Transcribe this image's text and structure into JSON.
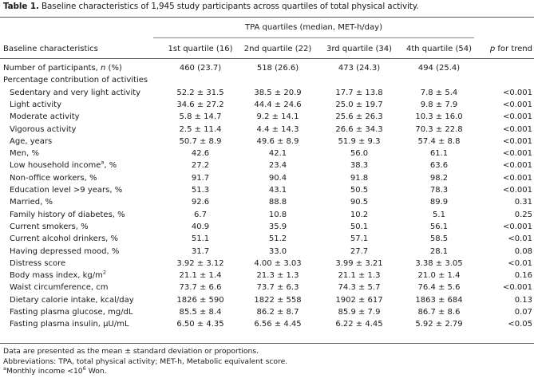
{
  "title": {
    "label": "Table 1.",
    "text": "Baseline characteristics of 1,945 study participants across quartiles of total physical activity."
  },
  "header": {
    "group_label": "TPA quartiles (median, MET-h/day)",
    "row_label": "Baseline characteristics",
    "columns": [
      "1st quartile (16)",
      "2nd quartile (22)",
      "3rd quartile (34)",
      "4th quartile (54)"
    ],
    "trend_prefix": "p",
    "trend_suffix": " for trend"
  },
  "rows": [
    {
      "label": "Number of participants, n (%)",
      "values": [
        "460 (23.7)",
        "518 (26.6)",
        "473 (24.3)",
        "494 (25.4)"
      ],
      "p": ""
    },
    {
      "label": "Percentage contribution of activities",
      "values": [
        "",
        "",
        "",
        ""
      ],
      "p": ""
    },
    {
      "label": "Sedentary and very light activity",
      "values": [
        "52.2 ± 31.5",
        "38.5 ± 20.9",
        "17.7 ± 13.8",
        "7.8 ± 5.4"
      ],
      "p": "<0.001"
    },
    {
      "label": "Light activity",
      "values": [
        "34.6 ± 27.2",
        "44.4 ± 24.6",
        "25.0 ± 19.7",
        "9.8 ± 7.9"
      ],
      "p": "<0.001"
    },
    {
      "label": "Moderate activity",
      "values": [
        "5.8 ± 14.7",
        "9.2 ± 14.1",
        "25.6 ± 26.3",
        "10.3 ± 16.0"
      ],
      "p": "<0.001"
    },
    {
      "label": "Vigorous activity",
      "values": [
        "2.5 ± 11.4",
        "4.4 ± 14.3",
        "26.6 ± 34.3",
        "70.3 ± 22.8"
      ],
      "p": "<0.001"
    },
    {
      "label": "Age, years",
      "values": [
        "50.7 ± 8.9",
        "49.6 ± 8.9",
        "51.9 ± 9.3",
        "57.4 ± 8.8"
      ],
      "p": "<0.001"
    },
    {
      "label": "Men, %",
      "values": [
        "42.6",
        "42.1",
        "56.0",
        "61.1"
      ],
      "p": "<0.001"
    },
    {
      "label": "Low household income",
      "sup": "a",
      "label_suffix": ", %",
      "values": [
        "27.2",
        "23.4",
        "38.3",
        "63.6"
      ],
      "p": "<0.001"
    },
    {
      "label": "Non-office workers, %",
      "values": [
        "91.7",
        "90.4",
        "91.8",
        "98.2"
      ],
      "p": "<0.001"
    },
    {
      "label": "Education level >9 years, %",
      "values": [
        "51.3",
        "43.1",
        "50.5",
        "78.3"
      ],
      "p": "<0.001"
    },
    {
      "label": "Married, %",
      "values": [
        "92.6",
        "88.8",
        "90.5",
        "89.9"
      ],
      "p": "0.31"
    },
    {
      "label": "Family history of diabetes, %",
      "values": [
        "6.7",
        "10.8",
        "10.2",
        "5.1"
      ],
      "p": "0.25"
    },
    {
      "label": "Current smokers, %",
      "values": [
        "40.9",
        "35.9",
        "50.1",
        "56.1"
      ],
      "p": "<0.001"
    },
    {
      "label": "Current alcohol drinkers, %",
      "values": [
        "51.1",
        "51.2",
        "57.1",
        "58.5"
      ],
      "p": "<0.01"
    },
    {
      "label": "Having depressed mood, %",
      "values": [
        "31.7",
        "33.0",
        "27.7",
        "28.1"
      ],
      "p": "0.08"
    },
    {
      "label": "Distress score",
      "values": [
        "3.92 ± 3.12",
        "4.00 ± 3.03",
        "3.99 ± 3.21",
        "3.38 ± 3.05"
      ],
      "p": "<0.01"
    },
    {
      "label": "Body mass index, kg/m",
      "sup": "2",
      "label_suffix": "",
      "values": [
        "21.1 ± 1.4",
        "21.3 ± 1.3",
        "21.1 ± 1.3",
        "21.0 ± 1.4"
      ],
      "p": "0.16"
    },
    {
      "label": "Waist circumference, cm",
      "values": [
        "73.7 ± 6.6",
        "73.7 ± 6.3",
        "74.3 ± 5.7",
        "76.4 ± 5.6"
      ],
      "p": "<0.001"
    },
    {
      "label": "Dietary calorie intake, kcal/day",
      "values": [
        "1826 ± 590",
        "1822 ± 558",
        "1902 ± 617",
        "1863 ± 684"
      ],
      "p": "0.13"
    },
    {
      "label": "Fasting plasma glucose, mg/dL",
      "values": [
        "85.5 ± 8.4",
        "86.2 ± 8.7",
        "85.9 ± 7.9",
        "86.7 ± 8.6"
      ],
      "p": "0.07"
    },
    {
      "label": "Fasting plasma insulin, μU/mL",
      "values": [
        "6.50 ± 4.35",
        "6.56 ± 4.45",
        "6.22 ± 4.45",
        "5.92 ± 2.79"
      ],
      "p": "<0.05"
    }
  ],
  "footnotes": {
    "line1": "Data are presented as the mean ± standard deviation or proportions.",
    "line2": "Abbreviations: TPA, total physical activity; MET-h, Metabolic equivalent score.",
    "line3_sup": "a",
    "line3_pre": "Monthly income <10",
    "line3_exp": "6",
    "line3_post": " Won."
  }
}
